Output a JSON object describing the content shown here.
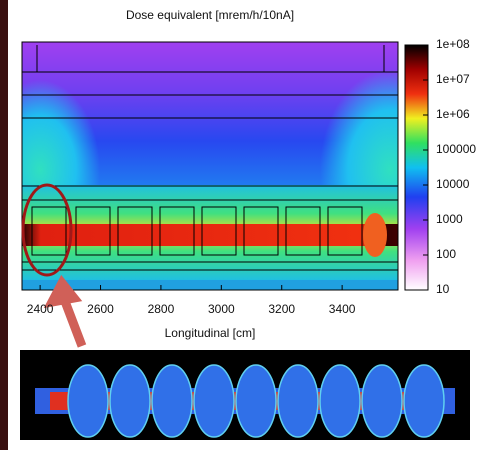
{
  "chart_data": {
    "type": "heatmap",
    "title": "Dose equivalent [mrem/h/10nA]",
    "x_label": "Longitudinal [cm]",
    "xlim": [
      2340,
      3585
    ],
    "xticks": [
      2400,
      2600,
      2800,
      3000,
      3200,
      3400
    ],
    "colorbar_log": true,
    "colorbar_lim": [
      10,
      100000000
    ],
    "colorbar_ticks": [
      10,
      100,
      1000,
      10000,
      100000,
      {
        "value": 1000000,
        "label": "1e+06"
      },
      {
        "value": 10000000,
        "label": "1e+07"
      },
      {
        "value": 100000000,
        "label": "1e+08"
      }
    ]
  }
}
